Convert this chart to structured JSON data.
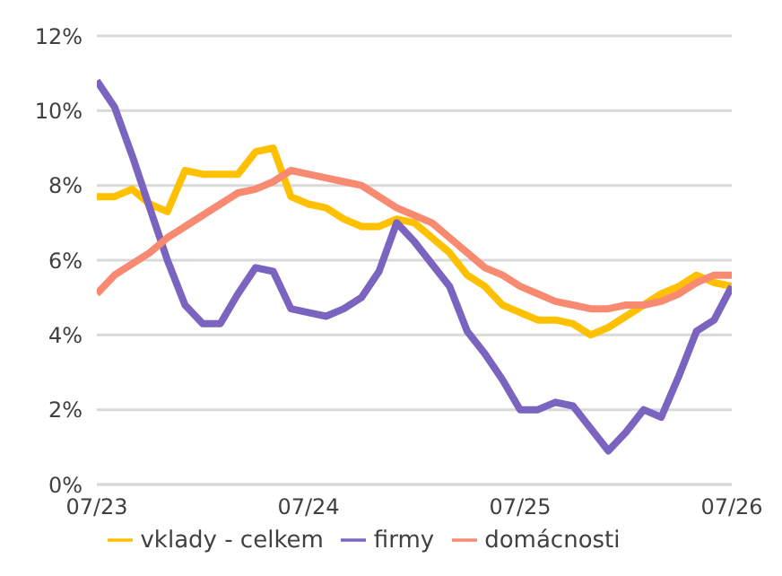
{
  "chart_data": {
    "type": "line",
    "x": [
      "2023-07",
      "2023-08",
      "2023-09",
      "2023-10",
      "2023-11",
      "2023-12",
      "2024-01",
      "2024-02",
      "2024-03",
      "2024-04",
      "2024-05",
      "2024-06",
      "2024-07",
      "2024-08",
      "2024-09",
      "2024-10",
      "2024-11",
      "2024-12",
      "2025-01",
      "2025-02",
      "2025-03",
      "2025-04",
      "2025-05",
      "2025-06",
      "2025-07",
      "2025-08",
      "2025-09",
      "2025-10",
      "2025-11",
      "2025-12",
      "2026-01",
      "2026-02",
      "2026-03",
      "2026-04",
      "2026-05",
      "2026-06",
      "2026-07"
    ],
    "series": [
      {
        "name": "vklady - celkem",
        "color": "#ffc000",
        "values": [
          7.7,
          7.7,
          7.9,
          7.5,
          7.3,
          8.4,
          8.3,
          8.3,
          8.3,
          8.9,
          9.0,
          7.7,
          7.5,
          7.4,
          7.1,
          6.9,
          6.9,
          7.1,
          7.0,
          6.6,
          6.2,
          5.6,
          5.3,
          4.8,
          4.6,
          4.4,
          4.4,
          4.3,
          4.0,
          4.2,
          4.5,
          4.8,
          5.1,
          5.3,
          5.6,
          5.4,
          5.3
        ]
      },
      {
        "name": "firmy",
        "color": "#7b64c0",
        "values": [
          10.8,
          10.1,
          8.8,
          7.4,
          6.0,
          4.8,
          4.3,
          4.3,
          5.1,
          5.8,
          5.7,
          4.7,
          4.6,
          4.5,
          4.7,
          5.0,
          5.7,
          7.0,
          6.5,
          5.9,
          5.3,
          4.1,
          3.5,
          2.8,
          2.0,
          2.0,
          2.2,
          2.1,
          1.5,
          0.9,
          1.4,
          2.0,
          1.8,
          2.9,
          4.1,
          4.4,
          5.3
        ]
      },
      {
        "name": "domácnosti",
        "color": "#f98a72",
        "values": [
          5.1,
          5.6,
          5.9,
          6.2,
          6.6,
          6.9,
          7.2,
          7.5,
          7.8,
          7.9,
          8.1,
          8.4,
          8.3,
          8.2,
          8.1,
          8.0,
          7.7,
          7.4,
          7.2,
          7.0,
          6.6,
          6.2,
          5.8,
          5.6,
          5.3,
          5.1,
          4.9,
          4.8,
          4.7,
          4.7,
          4.8,
          4.8,
          4.9,
          5.1,
          5.4,
          5.6,
          5.6
        ]
      }
    ],
    "xlim": [
      "2023-07",
      "2026-07"
    ],
    "xticks": [
      {
        "value": "2023-07",
        "label": "07/23"
      },
      {
        "value": "2024-07",
        "label": "07/24"
      },
      {
        "value": "2025-07",
        "label": "07/25"
      },
      {
        "value": "2026-07",
        "label": "07/26"
      }
    ],
    "ylim": [
      0,
      12
    ],
    "yticks": [
      {
        "value": 0,
        "label": "0%"
      },
      {
        "value": 2,
        "label": "2%"
      },
      {
        "value": 4,
        "label": "4%"
      },
      {
        "value": 6,
        "label": "6%"
      },
      {
        "value": 8,
        "label": "8%"
      },
      {
        "value": 10,
        "label": "10%"
      },
      {
        "value": 12,
        "label": "12%"
      }
    ],
    "grid": "y",
    "legend": "bottom",
    "marker": "none",
    "line_style": "solid"
  }
}
